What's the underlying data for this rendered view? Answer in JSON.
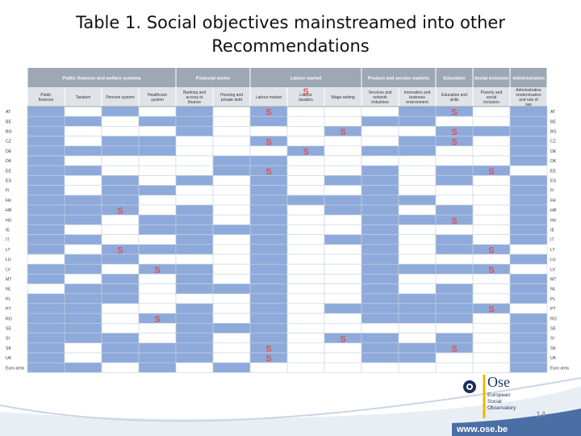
{
  "slide": {
    "title_line1": "Table 1. Social objectives mainstreamed into other",
    "title_line2": "Recommendations",
    "page_number": "14",
    "website": "www.ose.be"
  },
  "logo": {
    "name": "Ose",
    "line1": "European",
    "line2": "Social",
    "line3": "Observatory"
  },
  "colors": {
    "header_group": "#9ea8b4",
    "header_sub": "#dfe3e8",
    "cell_blue": "#8eaadb",
    "cell_white": "#ffffff",
    "grid_line": "#c9d2dd",
    "s_mark": "#e05050",
    "band": "#4a6fa5"
  },
  "table": {
    "groups": [
      {
        "label": "Public finances and welfare systems",
        "span": 4
      },
      {
        "label": "Financial sector",
        "span": 2
      },
      {
        "label": "Labour market",
        "span": 3
      },
      {
        "label": "Product and service markets",
        "span": 2
      },
      {
        "label": "Education",
        "span": 1
      },
      {
        "label": "Social inclusion",
        "span": 1
      },
      {
        "label": "Administration",
        "span": 1
      }
    ],
    "columns": [
      "Public finances",
      "Taxation",
      "Pension system",
      "Healthcare system",
      "Banking and access to finance",
      "Housing and private debt",
      "Labour market",
      "Labour taxation",
      "Wage-setting",
      "Services and network industries",
      "Innovation and business environment",
      "Education and skills",
      "Poverty and social inclusion",
      "Administrative modernisation and rule of law"
    ],
    "rows": [
      {
        "code": "AT",
        "blue": [
          0,
          2,
          4,
          6,
          10,
          11,
          13
        ],
        "s": [
          6,
          11
        ]
      },
      {
        "code": "BE",
        "blue": [
          0,
          1,
          3,
          4,
          6,
          9,
          10,
          13
        ],
        "s": []
      },
      {
        "code": "BG",
        "blue": [
          0,
          4,
          8,
          11,
          12,
          13
        ],
        "s": [
          8,
          11
        ]
      },
      {
        "code": "CZ",
        "blue": [
          0,
          2,
          3,
          6,
          10,
          11,
          13
        ],
        "s": [
          6,
          11
        ]
      },
      {
        "code": "DE",
        "blue": [
          0,
          1,
          2,
          3,
          7,
          9,
          10,
          13
        ],
        "s": [
          7
        ]
      },
      {
        "code": "DK",
        "blue": [
          0,
          5,
          6,
          13
        ],
        "s": []
      },
      {
        "code": "EE",
        "blue": [
          0,
          1,
          5,
          6,
          9,
          11,
          12
        ],
        "s": [
          6,
          12
        ]
      },
      {
        "code": "ES",
        "blue": [
          0,
          2,
          4,
          6,
          8,
          9,
          11,
          13
        ],
        "s": []
      },
      {
        "code": "FI",
        "blue": [
          0,
          2,
          3,
          6,
          9,
          13
        ],
        "s": []
      },
      {
        "code": "FR",
        "blue": [
          0,
          1,
          2,
          6,
          7,
          8,
          9,
          10,
          13
        ],
        "s": []
      },
      {
        "code": "HR",
        "blue": [
          0,
          1,
          2,
          4,
          6,
          8,
          9,
          11,
          13
        ],
        "s": [
          2
        ]
      },
      {
        "code": "HU",
        "blue": [
          0,
          1,
          3,
          4,
          6,
          9,
          10,
          11,
          13
        ],
        "s": [
          11
        ]
      },
      {
        "code": "IE",
        "blue": [
          0,
          3,
          4,
          5,
          6,
          9,
          13
        ],
        "s": []
      },
      {
        "code": "IT",
        "blue": [
          0,
          1,
          4,
          6,
          8,
          9,
          11,
          13
        ],
        "s": []
      },
      {
        "code": "LT",
        "blue": [
          0,
          2,
          3,
          4,
          6,
          9,
          11,
          12
        ],
        "s": [
          2,
          12
        ]
      },
      {
        "code": "LU",
        "blue": [
          1,
          2,
          6,
          9,
          13
        ],
        "s": []
      },
      {
        "code": "LV",
        "blue": [
          0,
          1,
          3,
          4,
          6,
          9,
          10,
          11,
          12
        ],
        "s": [
          3,
          12
        ]
      },
      {
        "code": "MT",
        "blue": [
          0,
          2,
          4,
          6,
          9,
          13
        ],
        "s": []
      },
      {
        "code": "NL",
        "blue": [
          1,
          2,
          4,
          5,
          6,
          9,
          11,
          13
        ],
        "s": []
      },
      {
        "code": "PL",
        "blue": [
          0,
          1,
          2,
          6,
          9,
          10,
          11,
          13
        ],
        "s": []
      },
      {
        "code": "PT",
        "blue": [
          0,
          1,
          4,
          6,
          8,
          9,
          10,
          11,
          12
        ],
        "s": [
          12
        ]
      },
      {
        "code": "RO",
        "blue": [
          0,
          1,
          3,
          4,
          6,
          9,
          10,
          11,
          13
        ],
        "s": [
          3
        ]
      },
      {
        "code": "SE",
        "blue": [
          0,
          1,
          4,
          5,
          6,
          13
        ],
        "s": []
      },
      {
        "code": "SI",
        "blue": [
          0,
          1,
          2,
          4,
          6,
          8,
          9,
          11,
          13
        ],
        "s": [
          8
        ]
      },
      {
        "code": "SK",
        "blue": [
          0,
          2,
          3,
          4,
          6,
          9,
          10,
          11,
          13
        ],
        "s": [
          6,
          11
        ]
      },
      {
        "code": "UK",
        "blue": [
          0,
          2,
          3,
          4,
          6,
          9,
          10,
          13
        ],
        "s": [
          6
        ]
      },
      {
        "code": "Euro area",
        "blue": [
          0,
          1,
          3,
          5,
          13
        ],
        "s": []
      }
    ],
    "mark_symbol": "S"
  }
}
